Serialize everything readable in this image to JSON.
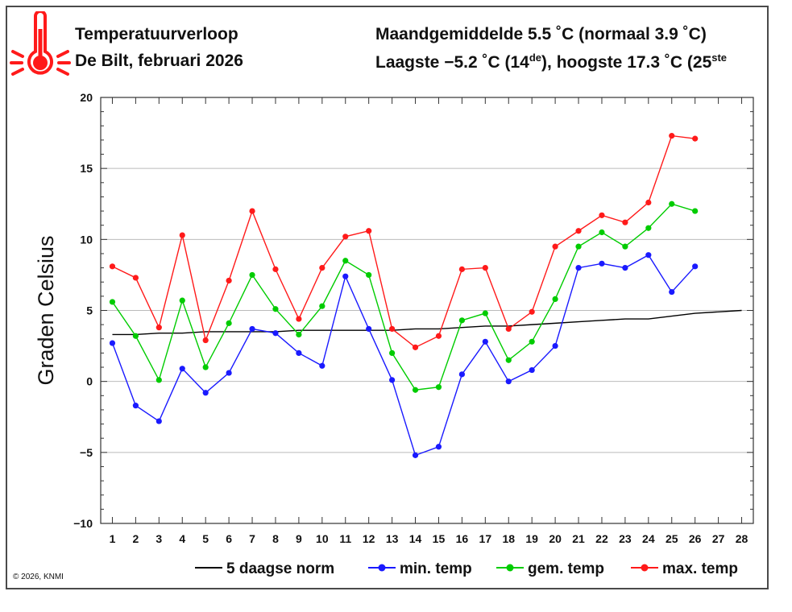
{
  "header": {
    "title": "Temperatuurverloop",
    "location": "De Bilt, februari 2026",
    "monthly_avg_label": "Maandgemiddelde",
    "monthly_avg": "5.5",
    "monthly_avg_unit": "˚C",
    "normal_label": "(normaal 3.9 ˚C)",
    "lowest_label": "Laagste",
    "lowest_value": "−5.2 ˚C",
    "lowest_day": "14",
    "lowest_day_suffix": "de",
    "highest_label": ", hoogste 17.3 ˚C",
    "highest_day": "25",
    "highest_day_suffix": "ste",
    "icon": "thermometer-icon"
  },
  "footer": {
    "copyright": "© 2026, KNMI"
  },
  "colors": {
    "norm": "#000000",
    "min": "#1a1aff",
    "gem": "#00cc00",
    "max": "#ff1a1a",
    "grid": "#bbbbbb"
  },
  "chart_data": {
    "type": "line",
    "ylabel": "Graden Celsius",
    "xlabel": "",
    "ylim": [
      -10,
      20
    ],
    "yticks": [
      -10,
      -5,
      0,
      5,
      10,
      15,
      20
    ],
    "xlim": [
      0.5,
      28.5
    ],
    "x": [
      1,
      2,
      3,
      4,
      5,
      6,
      7,
      8,
      9,
      10,
      11,
      12,
      13,
      14,
      15,
      16,
      17,
      18,
      19,
      20,
      21,
      22,
      23,
      24,
      25,
      26,
      27,
      28
    ],
    "series": [
      {
        "name": "5 daagse norm",
        "key": "norm",
        "x": [
          1,
          2,
          3,
          4,
          5,
          6,
          7,
          8,
          9,
          10,
          11,
          12,
          13,
          14,
          15,
          16,
          17,
          18,
          19,
          20,
          21,
          22,
          23,
          24,
          25,
          26,
          27,
          28
        ],
        "values": [
          3.3,
          3.3,
          3.4,
          3.4,
          3.5,
          3.5,
          3.5,
          3.5,
          3.6,
          3.6,
          3.6,
          3.6,
          3.6,
          3.7,
          3.7,
          3.8,
          3.9,
          3.9,
          4.0,
          4.1,
          4.2,
          4.3,
          4.4,
          4.4,
          4.6,
          4.8,
          4.9,
          5.0
        ]
      },
      {
        "name": "min. temp",
        "key": "min",
        "x": [
          1,
          2,
          3,
          4,
          5,
          6,
          7,
          8,
          9,
          10,
          11,
          12,
          13,
          14,
          15,
          16,
          17,
          18,
          19,
          20,
          21,
          22,
          23,
          24,
          25,
          26
        ],
        "values": [
          2.7,
          -1.7,
          -2.8,
          0.9,
          -0.8,
          0.6,
          3.7,
          3.4,
          2.0,
          1.1,
          7.4,
          3.7,
          0.1,
          -5.2,
          -4.6,
          0.5,
          2.8,
          0.0,
          0.8,
          2.5,
          8.0,
          8.3,
          8.0,
          8.9,
          6.3,
          8.1
        ]
      },
      {
        "name": "gem. temp",
        "key": "gem",
        "x": [
          1,
          2,
          3,
          4,
          5,
          6,
          7,
          8,
          9,
          10,
          11,
          12,
          13,
          14,
          15,
          16,
          17,
          18,
          19,
          20,
          21,
          22,
          23,
          24,
          25,
          26
        ],
        "values": [
          5.6,
          3.2,
          0.1,
          5.7,
          1.0,
          4.1,
          7.5,
          5.1,
          3.3,
          5.3,
          8.5,
          7.5,
          2.0,
          -0.6,
          -0.4,
          4.3,
          4.8,
          1.5,
          2.8,
          5.8,
          9.5,
          10.5,
          9.5,
          10.8,
          12.5,
          12.0
        ]
      },
      {
        "name": "max. temp",
        "key": "max",
        "x": [
          1,
          2,
          3,
          4,
          5,
          6,
          7,
          8,
          9,
          10,
          11,
          12,
          13,
          14,
          15,
          16,
          17,
          18,
          19,
          20,
          21,
          22,
          23,
          24,
          25,
          26
        ],
        "values": [
          8.1,
          7.3,
          3.8,
          10.3,
          2.9,
          7.1,
          12.0,
          7.9,
          4.4,
          8.0,
          10.2,
          10.6,
          3.7,
          2.4,
          3.2,
          7.9,
          8.0,
          3.7,
          4.9,
          9.5,
          10.6,
          11.7,
          11.2,
          12.6,
          17.3,
          17.1
        ]
      }
    ]
  }
}
